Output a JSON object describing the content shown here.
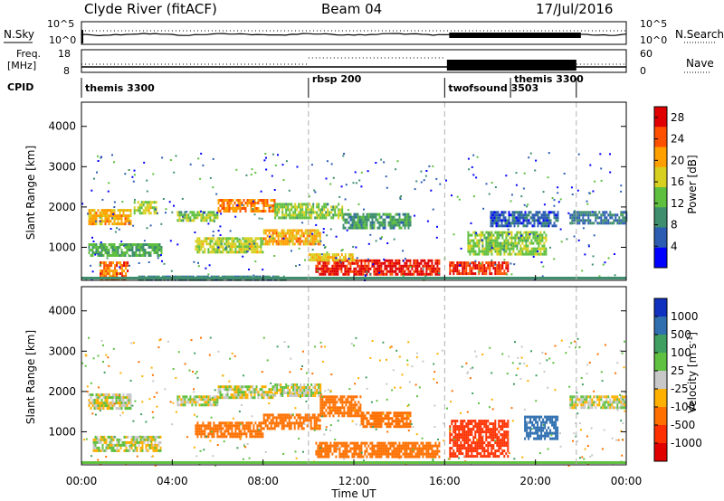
{
  "header": {
    "title": "Clyde River (fitACF)",
    "beam": "Beam 04",
    "date": "17/Jul/2016"
  },
  "nsky_panel": {
    "left_label": "N.Sky",
    "right_label": "N.Search",
    "left_ticks": [
      "10^5",
      "10^0"
    ],
    "right_ticks": [
      "10^5",
      "10^0"
    ]
  },
  "freq_panel": {
    "left_label_1": "Freq.",
    "left_label_2": "[MHz]",
    "right_label": "Nave",
    "left_ticks": [
      "18",
      "8"
    ],
    "right_ticks": [
      "60",
      "0"
    ]
  },
  "cpid": {
    "label": "CPID",
    "segments": [
      {
        "name": "themis 3300",
        "start_hour": 0.0,
        "end_hour": 10.0
      },
      {
        "name": "rbsp 200",
        "start_hour": 10.0,
        "end_hour": 16.0
      },
      {
        "name": "twofsound 3503",
        "start_hour": 16.0,
        "end_hour": 22.0
      },
      {
        "name": "themis 3300",
        "start_hour": 18.9,
        "end_hour": 24.0
      }
    ]
  },
  "x_axis": {
    "label": "Time UT",
    "ticks": [
      "00:00",
      "04:00",
      "08:00",
      "12:00",
      "16:00",
      "20:00",
      "00:00"
    ],
    "range_hours": [
      0,
      24
    ]
  },
  "chart_data": [
    {
      "type": "heatmap",
      "name": "power",
      "ylabel": "Slant Range [km]",
      "y_ticks": [
        "1000",
        "2000",
        "3000",
        "4000"
      ],
      "ylim": [
        180,
        4600
      ],
      "colorbar_label": "Power [dB]",
      "colorbar_ticks": [
        "4",
        "8",
        "12",
        "16",
        "20",
        "24",
        "28"
      ],
      "colorbar_range": [
        0,
        30
      ],
      "colorbar_colors": [
        "#0000ff",
        "#2d5db3",
        "#3f8f6f",
        "#5fbf3f",
        "#d8d020",
        "#ffa000",
        "#ff5000",
        "#e00000"
      ],
      "bands": [
        {
          "t0": 0.3,
          "t1": 2.2,
          "r0": 1600,
          "r1": 1950,
          "v": 20
        },
        {
          "t0": 2.3,
          "t1": 3.3,
          "r0": 1850,
          "r1": 2150,
          "v": 16
        },
        {
          "t0": 4.2,
          "t1": 6.0,
          "r0": 1650,
          "r1": 1900,
          "v": 14
        },
        {
          "t0": 6.0,
          "t1": 8.5,
          "r0": 1900,
          "r1": 2200,
          "v": 22
        },
        {
          "t0": 8.5,
          "t1": 11.5,
          "r0": 1700,
          "r1": 2100,
          "v": 14
        },
        {
          "t0": 11.5,
          "t1": 14.5,
          "r0": 1500,
          "r1": 1850,
          "v": 10
        },
        {
          "t0": 0.3,
          "t1": 3.5,
          "r0": 800,
          "r1": 1100,
          "v": 12
        },
        {
          "t0": 5.0,
          "t1": 8.0,
          "r0": 900,
          "r1": 1250,
          "v": 16
        },
        {
          "t0": 8.0,
          "t1": 10.5,
          "r0": 1100,
          "r1": 1450,
          "v": 20
        },
        {
          "t0": 10.3,
          "t1": 15.8,
          "r0": 350,
          "r1": 700,
          "v": 28
        },
        {
          "t0": 10.0,
          "t1": 12.0,
          "r0": 700,
          "r1": 850,
          "v": 18
        },
        {
          "t0": 0.8,
          "t1": 2.0,
          "r0": 200,
          "r1": 650,
          "v": 24
        },
        {
          "t0": 16.2,
          "t1": 18.8,
          "r0": 350,
          "r1": 650,
          "v": 26
        },
        {
          "t0": 17.0,
          "t1": 20.5,
          "r0": 800,
          "r1": 1400,
          "v": 14
        },
        {
          "t0": 18.0,
          "t1": 21.0,
          "r0": 1500,
          "r1": 1900,
          "v": 6
        },
        {
          "t0": 21.5,
          "t1": 24.0,
          "r0": 1600,
          "r1": 1900,
          "v": 8
        },
        {
          "t0": 2.5,
          "t1": 9.0,
          "r0": 180,
          "r1": 300,
          "v": 8
        }
      ]
    },
    {
      "type": "heatmap",
      "name": "velocity",
      "ylabel": "Slant Range [km]",
      "y_ticks": [
        "1000",
        "2000",
        "3000",
        "4000"
      ],
      "ylim": [
        180,
        4600
      ],
      "colorbar_label": "Velocity [m s^-1]",
      "colorbar_ticks": [
        "1000",
        "500",
        "100",
        "25",
        "-25",
        "-100",
        "-500",
        "-1000"
      ],
      "colorbar_colors": [
        "#1030c0",
        "#2f6fb0",
        "#3f9f60",
        "#60c040",
        "#c8c8c8",
        "#ffb000",
        "#ff7000",
        "#ff3000",
        "#e00000"
      ],
      "bands": [
        {
          "t0": 0.3,
          "t1": 2.2,
          "r0": 1600,
          "r1": 1950,
          "v": 0
        },
        {
          "t0": 4.2,
          "t1": 6.0,
          "r0": 1650,
          "r1": 1900,
          "v": 0
        },
        {
          "t0": 6.0,
          "t1": 8.5,
          "r0": 1850,
          "r1": 2150,
          "v": 0
        },
        {
          "t0": 8.5,
          "t1": 10.5,
          "r0": 1900,
          "r1": 2200,
          "v": 0
        },
        {
          "t0": 0.5,
          "t1": 3.5,
          "r0": 500,
          "r1": 900,
          "v": 0
        },
        {
          "t0": 5.0,
          "t1": 8.0,
          "r0": 900,
          "r1": 1250,
          "v": -300
        },
        {
          "t0": 8.0,
          "t1": 10.5,
          "r0": 1100,
          "r1": 1450,
          "v": -300
        },
        {
          "t0": 10.5,
          "t1": 12.3,
          "r0": 1400,
          "r1": 1900,
          "v": -400
        },
        {
          "t0": 12.3,
          "t1": 14.5,
          "r0": 1100,
          "r1": 1500,
          "v": -300
        },
        {
          "t0": 10.3,
          "t1": 15.8,
          "r0": 350,
          "r1": 750,
          "v": -200
        },
        {
          "t0": 16.2,
          "t1": 18.8,
          "r0": 400,
          "r1": 1300,
          "v": -600
        },
        {
          "t0": 19.5,
          "t1": 21.0,
          "r0": 800,
          "r1": 1400,
          "v": 800
        },
        {
          "t0": 21.5,
          "t1": 24.0,
          "r0": 1600,
          "r1": 1900,
          "v": 0
        }
      ]
    }
  ]
}
